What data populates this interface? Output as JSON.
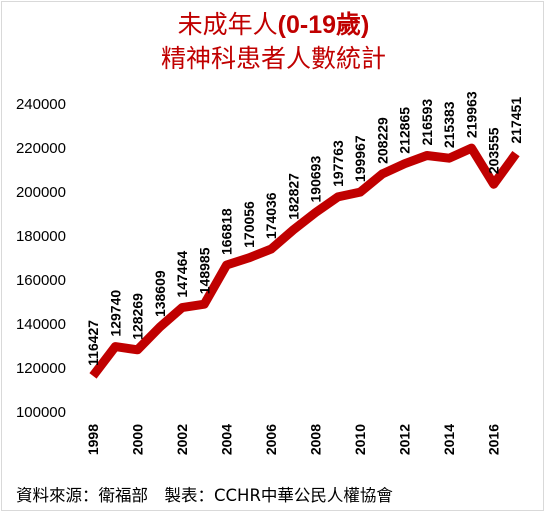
{
  "chart_data": {
    "type": "line",
    "title_line1_pre": "未成年人",
    "title_line1_num": "(0-19歲)",
    "title_line2": "精神科患者人數統計",
    "x": [
      1998,
      1999,
      2000,
      2001,
      2002,
      2003,
      2004,
      2005,
      2006,
      2007,
      2008,
      2009,
      2010,
      2011,
      2012,
      2013,
      2014,
      2015,
      2016,
      2017
    ],
    "values": [
      116427,
      129740,
      128269,
      138609,
      147464,
      148985,
      166818,
      170056,
      174036,
      182827,
      190693,
      197763,
      199967,
      208229,
      212865,
      216593,
      215383,
      219963,
      203555,
      217451
    ],
    "x_tick_labels": [
      "1998",
      "2000",
      "2002",
      "2004",
      "2006",
      "2008",
      "2010",
      "2012",
      "2014",
      "2016"
    ],
    "y_tick_labels": [
      "100000",
      "120000",
      "140000",
      "160000",
      "180000",
      "200000",
      "220000",
      "240000"
    ],
    "ylim": [
      100000,
      240000
    ],
    "line_color": "#c00000",
    "grid": false,
    "legend": false
  },
  "footer": "資料來源：衛福部　製表：CCHR中華公民人權協會"
}
